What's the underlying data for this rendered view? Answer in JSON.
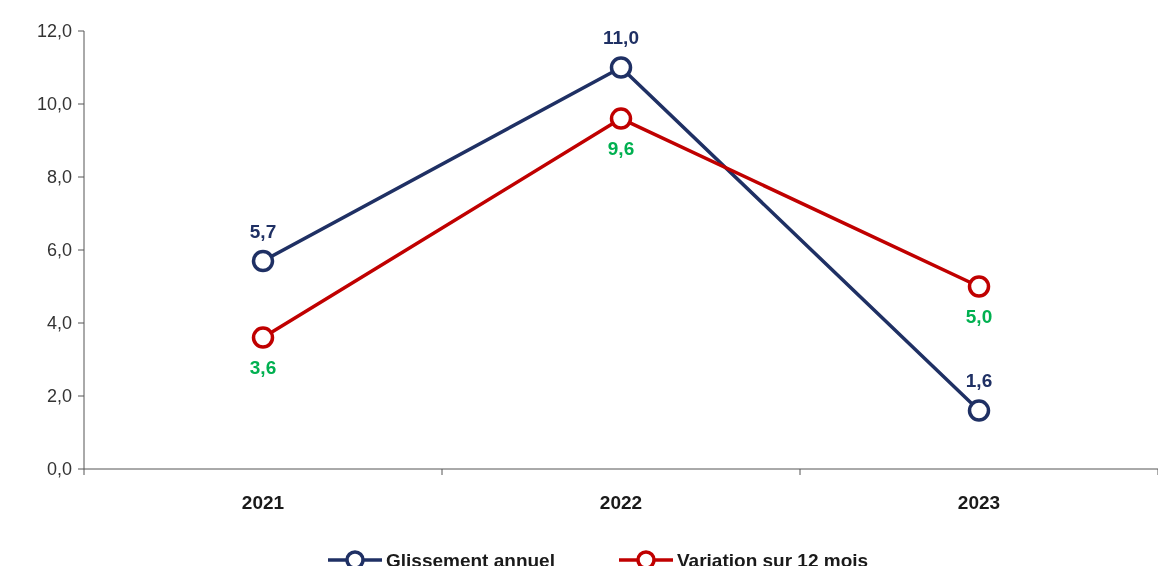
{
  "chart_data": {
    "type": "line",
    "categories": [
      "2021",
      "2022",
      "2023"
    ],
    "series": [
      {
        "name": "Glissement annuel",
        "color": "#1f3064",
        "values": [
          5.7,
          11.0,
          1.6
        ],
        "value_labels": [
          "5,7",
          "11,0",
          "1,6"
        ]
      },
      {
        "name": "Variation sur 12 mois",
        "color": "#c00000",
        "values": [
          3.6,
          9.6,
          5.0
        ],
        "value_labels": [
          "3,6",
          "9,6",
          "5,0"
        ]
      }
    ],
    "ylim": [
      0,
      12
    ],
    "yticks": [
      {
        "value": 0,
        "label": "0,0"
      },
      {
        "value": 2,
        "label": "2,0"
      },
      {
        "value": 4,
        "label": "4,0"
      },
      {
        "value": 6,
        "label": "6,0"
      },
      {
        "value": 8,
        "label": "8,0"
      },
      {
        "value": 10,
        "label": "10,0"
      },
      {
        "value": 12,
        "label": "12,0"
      }
    ],
    "grid": false,
    "legend": "bottom",
    "marker": "circle",
    "line_style": "solid"
  }
}
